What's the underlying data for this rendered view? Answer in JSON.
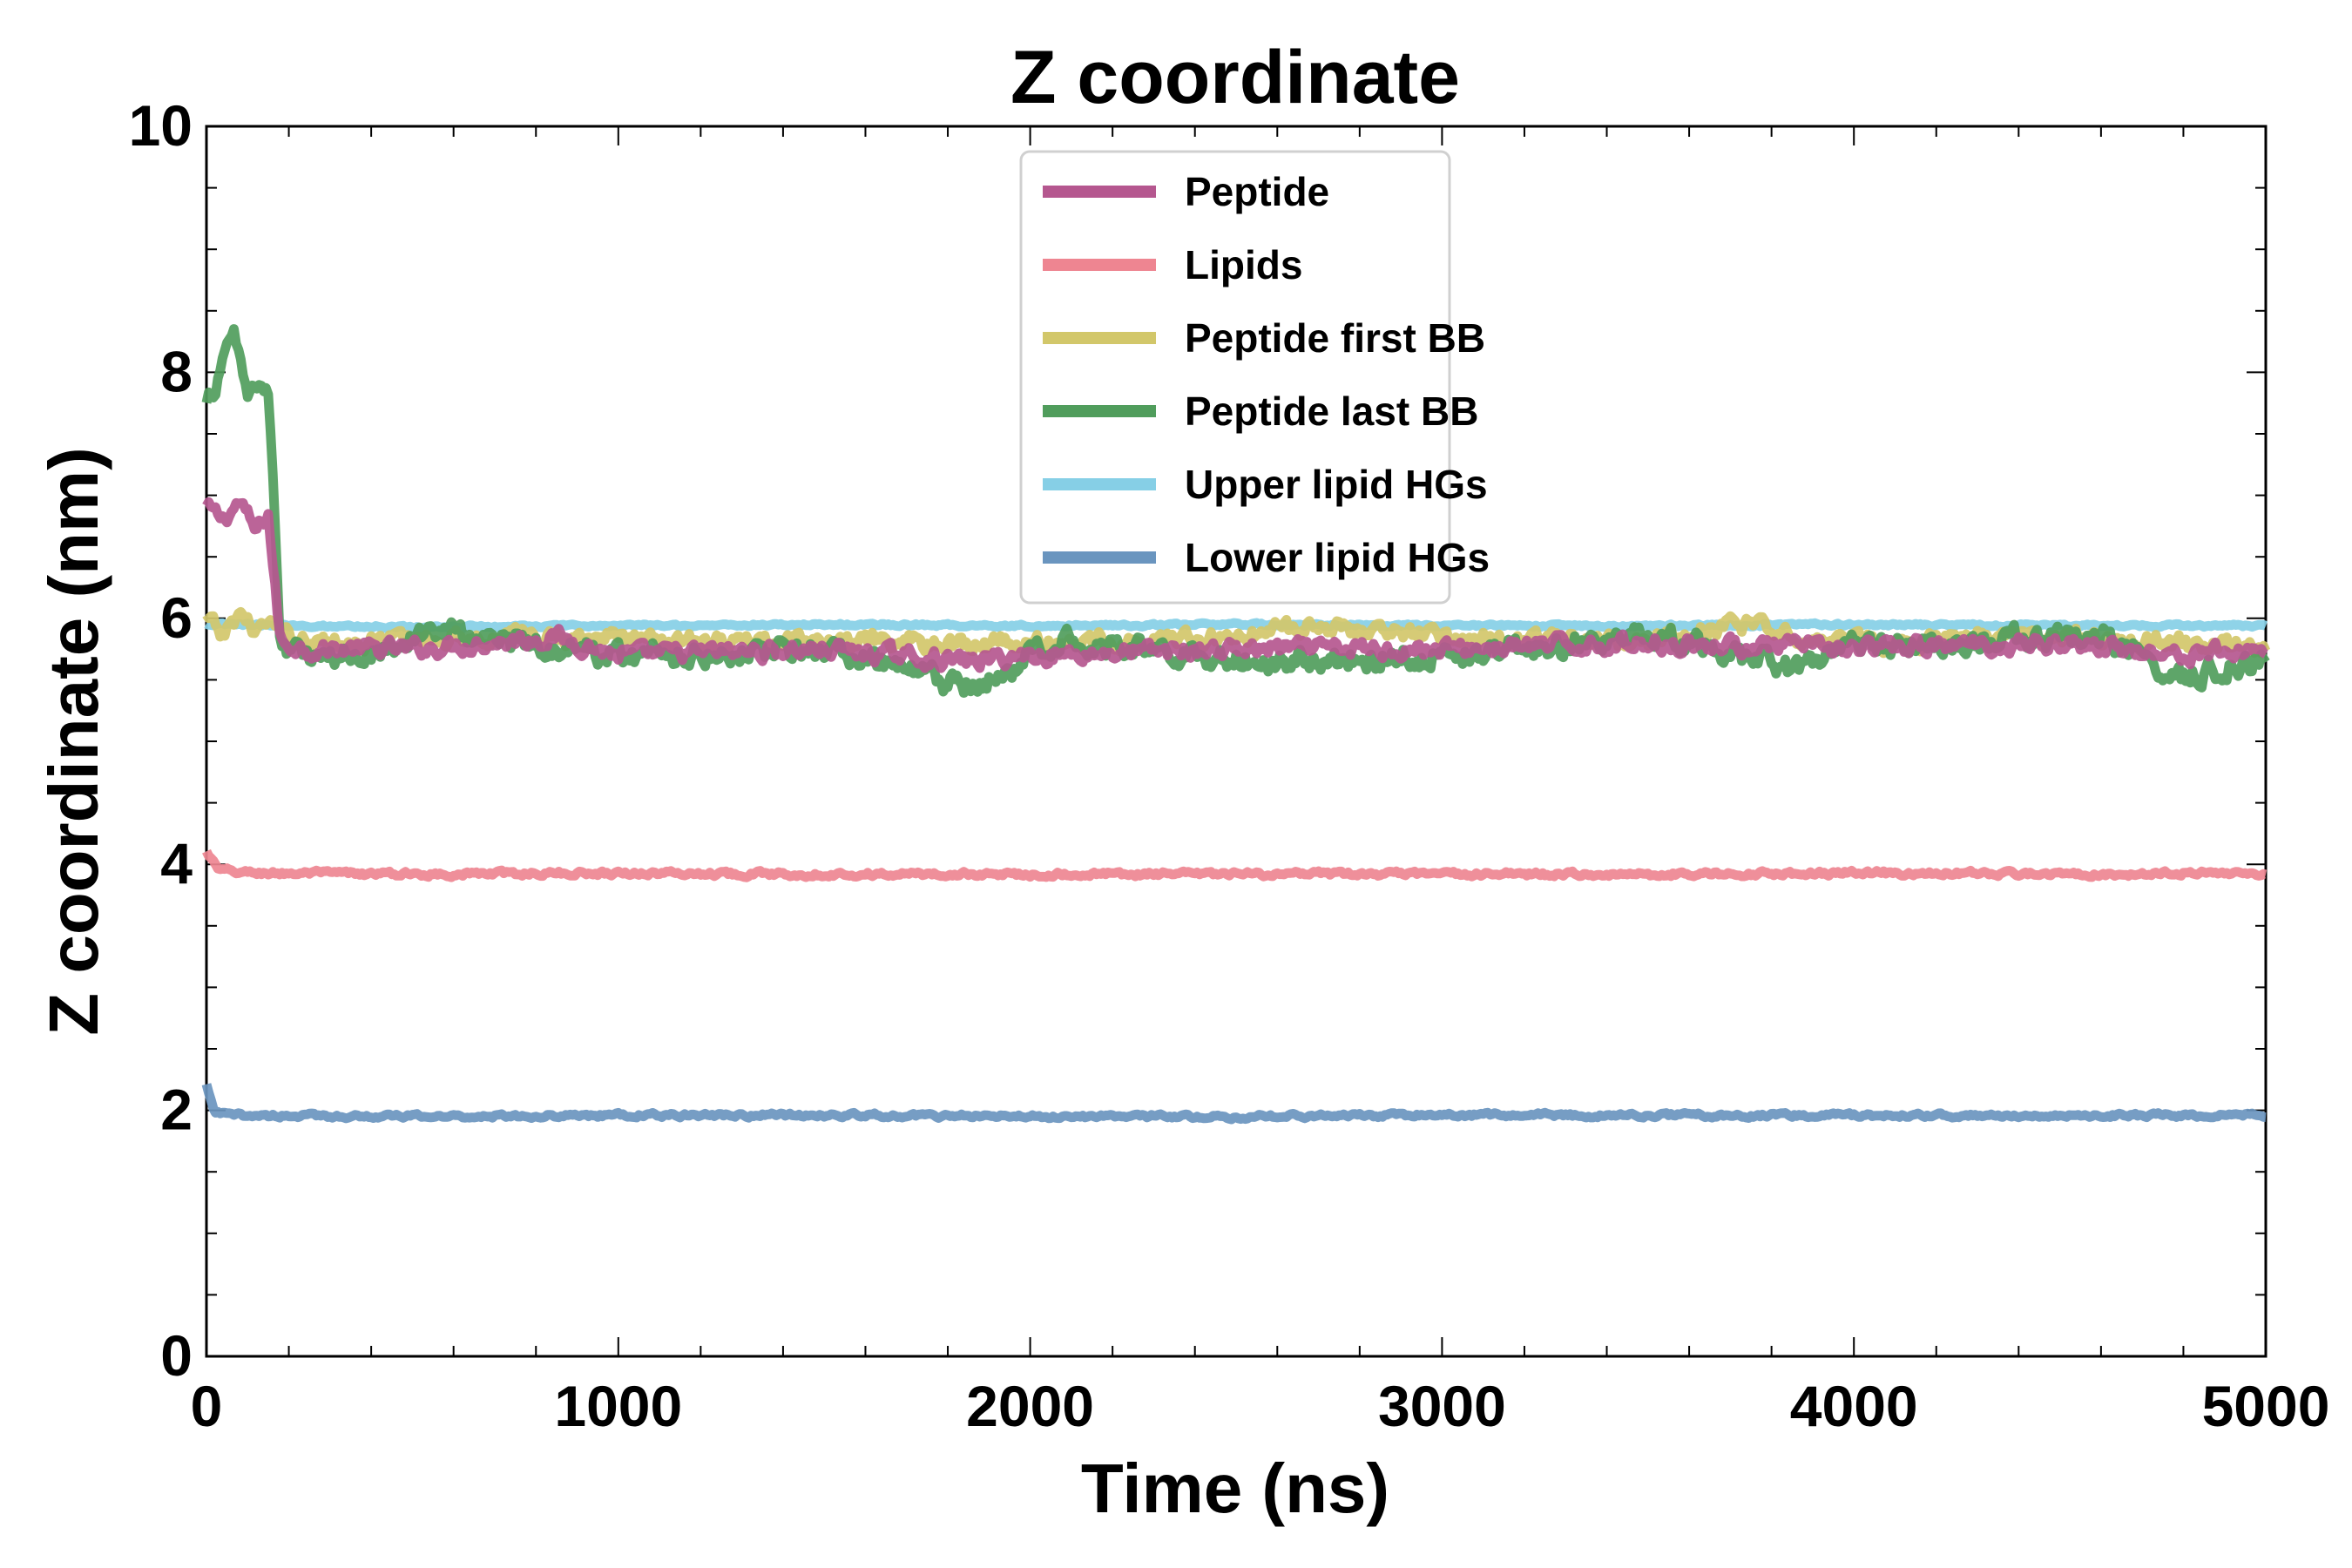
{
  "chart_data": {
    "type": "line",
    "title": "Z coordinate",
    "xlabel": "Time (ns)",
    "ylabel": "Z coordinate (nm)",
    "xlim": [
      0,
      5000
    ],
    "ylim": [
      0,
      10
    ],
    "xticks": [
      0,
      1000,
      2000,
      3000,
      4000,
      5000
    ],
    "yticks": [
      0,
      2,
      4,
      6,
      8,
      10
    ],
    "grid": false,
    "legend_position": "upper-center",
    "series": [
      {
        "name": "Peptide",
        "color": "#b5578f",
        "x": [
          0,
          40,
          80,
          120,
          150,
          165,
          180,
          250,
          500,
          850,
          1000,
          1500,
          1850,
          2000,
          2500,
          3000,
          3500,
          4000,
          4500,
          4800,
          5000
        ],
        "y": [
          6.9,
          6.8,
          6.95,
          6.7,
          6.85,
          6.3,
          5.8,
          5.75,
          5.75,
          5.85,
          5.7,
          5.75,
          5.65,
          5.7,
          5.75,
          5.75,
          5.8,
          5.75,
          5.8,
          5.7,
          5.75
        ]
      },
      {
        "name": "Lipids",
        "color": "#ee8591",
        "x": [
          0,
          30,
          100,
          500,
          1000,
          1500,
          2000,
          2500,
          3000,
          3500,
          4000,
          4500,
          5000
        ],
        "y": [
          4.1,
          3.95,
          3.93,
          3.92,
          3.93,
          3.92,
          3.92,
          3.92,
          3.92,
          3.92,
          3.93,
          3.92,
          3.93
        ]
      },
      {
        "name": "Peptide first BB",
        "color": "#d2c76a",
        "x": [
          0,
          40,
          80,
          120,
          150,
          165,
          180,
          300,
          600,
          1000,
          1500,
          2000,
          2500,
          2700,
          3000,
          3500,
          3700,
          4000,
          4500,
          5000
        ],
        "y": [
          6.0,
          5.85,
          6.05,
          5.9,
          5.95,
          5.95,
          5.85,
          5.8,
          5.85,
          5.85,
          5.8,
          5.8,
          5.85,
          5.95,
          5.85,
          5.8,
          5.95,
          5.8,
          5.85,
          5.75
        ]
      },
      {
        "name": "Peptide last BB",
        "color": "#509d5c",
        "x": [
          0,
          30,
          70,
          100,
          130,
          150,
          165,
          180,
          300,
          550,
          1000,
          1500,
          1880,
          2000,
          2100,
          2500,
          3000,
          3500,
          3850,
          4000,
          4600,
          4800,
          5000
        ],
        "y": [
          7.7,
          8.0,
          8.3,
          7.8,
          7.9,
          7.9,
          6.8,
          5.75,
          5.65,
          5.9,
          5.7,
          5.75,
          5.4,
          5.7,
          5.85,
          5.65,
          5.7,
          5.85,
          5.6,
          5.75,
          5.85,
          5.5,
          5.7
        ]
      },
      {
        "name": "Upper lipid HGs",
        "color": "#86cfe6",
        "x": [
          0,
          500,
          1000,
          1500,
          2000,
          2500,
          3000,
          3500,
          4000,
          4500,
          5000
        ],
        "y": [
          5.95,
          5.93,
          5.94,
          5.95,
          5.94,
          5.95,
          5.94,
          5.94,
          5.95,
          5.94,
          5.94
        ]
      },
      {
        "name": "Lower lipid HGs",
        "color": "#6a95bf",
        "x": [
          0,
          20,
          60,
          500,
          1000,
          1500,
          2000,
          2500,
          3000,
          3500,
          4000,
          4500,
          5000
        ],
        "y": [
          2.2,
          1.98,
          1.96,
          1.95,
          1.96,
          1.96,
          1.95,
          1.95,
          1.96,
          1.96,
          1.96,
          1.96,
          1.96
        ]
      }
    ]
  }
}
